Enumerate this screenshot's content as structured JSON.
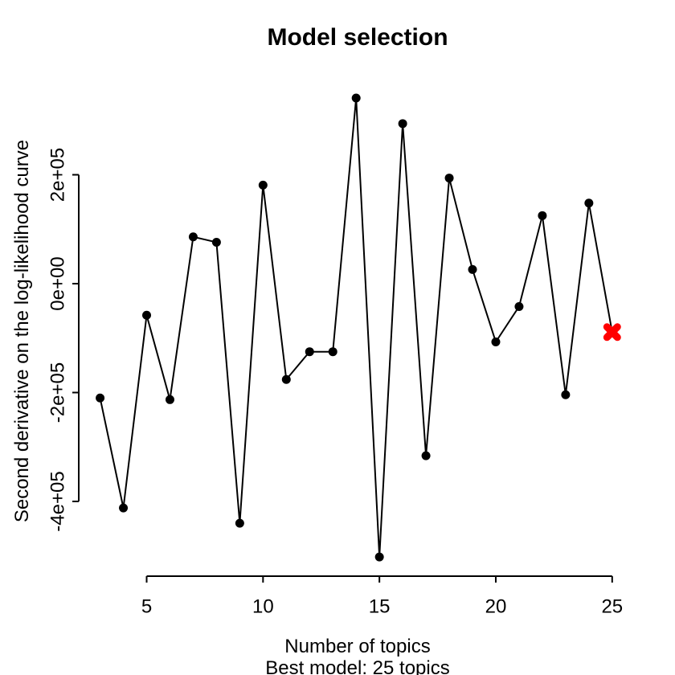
{
  "chart_data": {
    "type": "line",
    "title": "Model selection",
    "xlabel": "Number of topics",
    "xlabel_line2": "Best model: 25 topics",
    "ylabel": "Second derivative on the log-likelihood curve",
    "x": [
      3,
      4,
      5,
      6,
      7,
      8,
      9,
      10,
      11,
      12,
      13,
      14,
      15,
      16,
      17,
      18,
      19,
      20,
      21,
      22,
      23,
      24,
      25
    ],
    "values": [
      -210000,
      -412000,
      -58000,
      -213000,
      86000,
      76000,
      -440000,
      181000,
      -176000,
      -125000,
      -125000,
      341000,
      -502000,
      294000,
      -316000,
      194000,
      26000,
      -107000,
      -42000,
      125000,
      -204000,
      148000,
      -89000
    ],
    "series_color": "#000000",
    "marker": "filled-circle",
    "x_ticks": [
      5,
      10,
      15,
      20,
      25
    ],
    "x_tick_labels": [
      "5",
      "10",
      "15",
      "20",
      "25"
    ],
    "y_ticks": [
      -400000,
      -200000,
      0,
      200000
    ],
    "y_tick_labels": [
      "-4e+05",
      "-2e+05",
      "0e+00",
      "2e+05"
    ],
    "xlim": [
      3,
      25
    ],
    "ylim": [
      -502000,
      341000
    ],
    "grid": false,
    "legend": null,
    "best_model": {
      "x": 25,
      "value": -89000,
      "marker": "x",
      "color": "#FF0000"
    }
  }
}
